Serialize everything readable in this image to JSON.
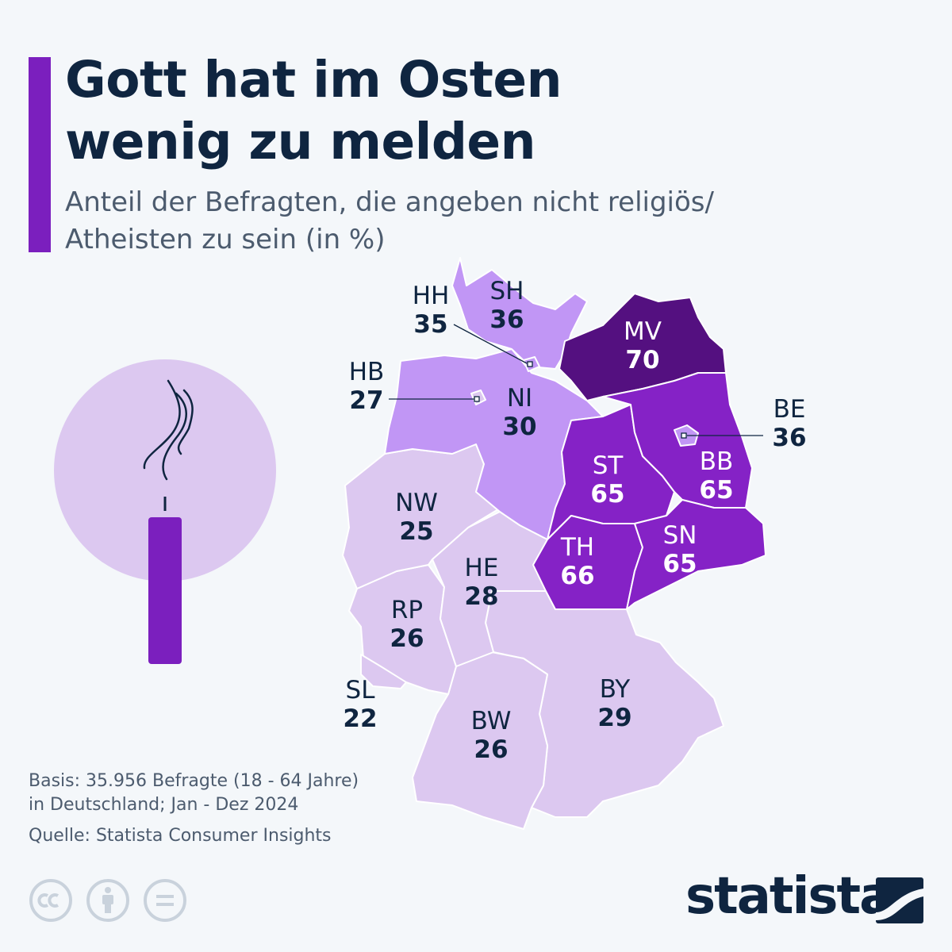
{
  "header": {
    "title_line1": "Gott hat im Osten",
    "title_line2": "wenig zu melden",
    "subtitle_line1": "Anteil der Befragten, die angeben nicht religiös/",
    "subtitle_line2": "Atheisten zu sein (in %)"
  },
  "colors": {
    "accent": "#7b1fbe",
    "very_light": "#dcc8f0",
    "light": "#c196f5",
    "medium": "#8522c6",
    "dark": "#541080",
    "text_dark": "#0f2540",
    "text_muted": "#4c5b6e"
  },
  "chart_data": {
    "type": "choropleth-map",
    "title": "Gott hat im Osten wenig zu melden",
    "subtitle": "Anteil der Befragten, die angeben nicht religiös/ Atheisten zu sein (in %)",
    "unit": "%",
    "regions": [
      {
        "code": "SH",
        "value": 36
      },
      {
        "code": "HH",
        "value": 35
      },
      {
        "code": "MV",
        "value": 70
      },
      {
        "code": "HB",
        "value": 27
      },
      {
        "code": "NI",
        "value": 30
      },
      {
        "code": "BE",
        "value": 36
      },
      {
        "code": "ST",
        "value": 65
      },
      {
        "code": "BB",
        "value": 65
      },
      {
        "code": "NW",
        "value": 25
      },
      {
        "code": "TH",
        "value": 66
      },
      {
        "code": "SN",
        "value": 65
      },
      {
        "code": "HE",
        "value": 28
      },
      {
        "code": "RP",
        "value": 26
      },
      {
        "code": "SL",
        "value": 22
      },
      {
        "code": "BY",
        "value": 29
      },
      {
        "code": "BW",
        "value": 26
      }
    ]
  },
  "footer": {
    "basis_line1": "Basis: 35.956 Befragte (18 - 64 Jahre)",
    "basis_line2": "in Deutschland; Jan - Dez 2024",
    "source": "Quelle: Statista Consumer Insights",
    "brand": "statista",
    "license_icons": [
      "cc-icon",
      "attribution-icon",
      "no-derivatives-icon"
    ]
  }
}
